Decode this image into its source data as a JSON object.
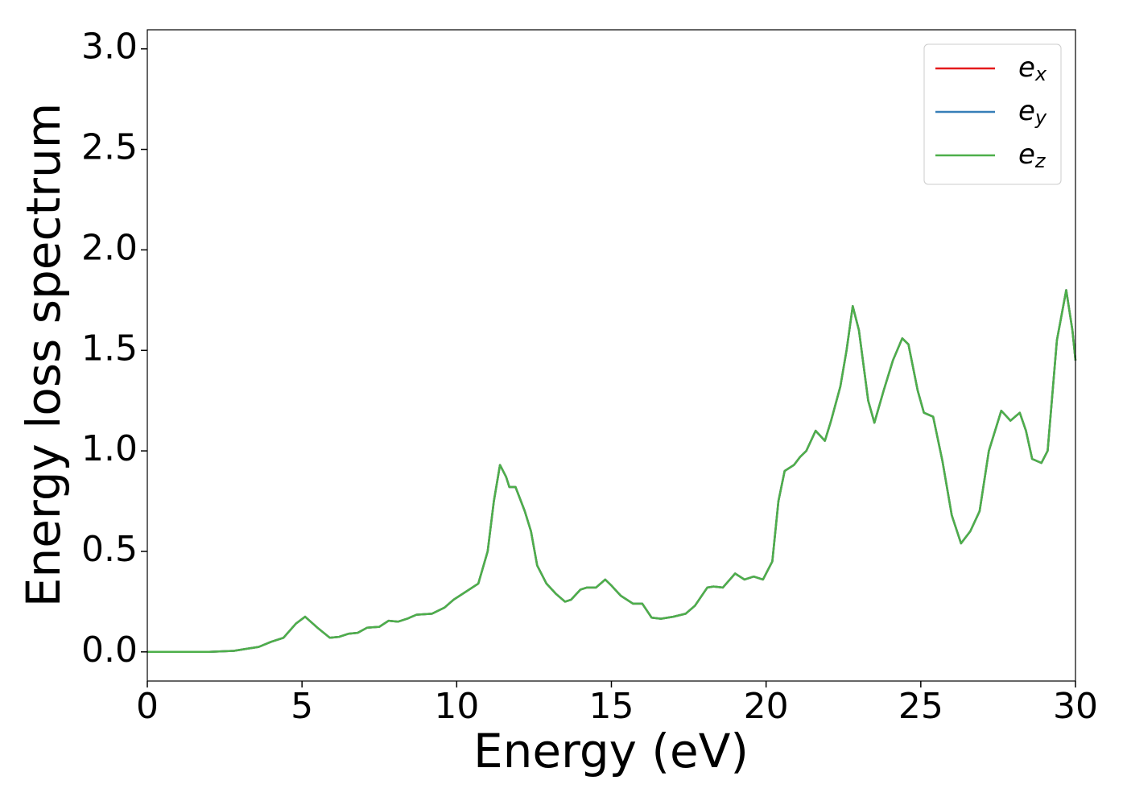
{
  "chart_data": {
    "type": "line",
    "xlabel": "Energy (eV)",
    "ylabel": "Energy loss spectrum",
    "x": [
      0,
      1,
      2,
      2.8,
      3.2,
      3.6,
      4,
      4.4,
      4.8,
      5.1,
      5.5,
      5.9,
      6.2,
      6.5,
      6.8,
      7.1,
      7.5,
      7.8,
      8.1,
      8.4,
      8.7,
      9.2,
      9.6,
      9.9,
      10.3,
      10.7,
      11.0,
      11.2,
      11.4,
      11.6,
      11.7,
      11.9,
      12.2,
      12.4,
      12.6,
      12.9,
      13.2,
      13.5,
      13.7,
      14.0,
      14.2,
      14.5,
      14.8,
      15.0,
      15.3,
      15.7,
      16.0,
      16.3,
      16.6,
      17.0,
      17.4,
      17.7,
      18.1,
      18.3,
      18.6,
      19.0,
      19.3,
      19.6,
      19.9,
      20.2,
      20.4,
      20.6,
      20.9,
      21.1,
      21.3,
      21.6,
      21.9,
      22.1,
      22.4,
      22.6,
      22.8,
      23.0,
      23.3,
      23.5,
      23.8,
      24.1,
      24.4,
      24.6,
      24.9,
      25.1,
      25.4,
      25.7,
      26.0,
      26.3,
      26.6,
      26.9,
      27.2,
      27.6,
      27.9,
      28.2,
      28.4,
      28.6,
      28.9,
      29.1,
      29.4,
      29.7,
      29.9,
      30.0
    ],
    "series": [
      {
        "name": "e_x",
        "color": "#e41a1c",
        "values": [
          0,
          0,
          0,
          0.005,
          0.015,
          0.025,
          0.05,
          0.07,
          0.14,
          0.175,
          0.12,
          0.07,
          0.075,
          0.09,
          0.095,
          0.12,
          0.125,
          0.155,
          0.15,
          0.165,
          0.185,
          0.19,
          0.22,
          0.26,
          0.3,
          0.34,
          0.5,
          0.75,
          0.93,
          0.87,
          0.82,
          0.82,
          0.7,
          0.6,
          0.43,
          0.34,
          0.29,
          0.25,
          0.26,
          0.31,
          0.32,
          0.32,
          0.36,
          0.33,
          0.28,
          0.24,
          0.24,
          0.17,
          0.165,
          0.175,
          0.19,
          0.23,
          0.32,
          0.325,
          0.32,
          0.39,
          0.36,
          0.375,
          0.36,
          0.45,
          0.75,
          0.9,
          0.93,
          0.97,
          1.0,
          1.1,
          1.05,
          1.15,
          1.32,
          1.5,
          1.72,
          1.6,
          1.25,
          1.14,
          1.3,
          1.45,
          1.56,
          1.53,
          1.3,
          1.19,
          1.17,
          0.95,
          0.68,
          0.54,
          0.6,
          0.7,
          1.0,
          1.2,
          1.15,
          1.19,
          1.1,
          0.96,
          0.94,
          1.0,
          1.55,
          1.8,
          1.6,
          1.45
        ]
      },
      {
        "name": "e_y",
        "color": "#377eb8",
        "values": [
          0,
          0,
          0,
          0.005,
          0.015,
          0.025,
          0.05,
          0.07,
          0.14,
          0.175,
          0.12,
          0.07,
          0.075,
          0.09,
          0.095,
          0.12,
          0.125,
          0.155,
          0.15,
          0.165,
          0.185,
          0.19,
          0.22,
          0.26,
          0.3,
          0.34,
          0.5,
          0.75,
          0.93,
          0.87,
          0.82,
          0.82,
          0.7,
          0.6,
          0.43,
          0.34,
          0.29,
          0.25,
          0.26,
          0.31,
          0.32,
          0.32,
          0.36,
          0.33,
          0.28,
          0.24,
          0.24,
          0.17,
          0.165,
          0.175,
          0.19,
          0.23,
          0.32,
          0.325,
          0.32,
          0.39,
          0.36,
          0.375,
          0.36,
          0.45,
          0.75,
          0.9,
          0.93,
          0.97,
          1.0,
          1.1,
          1.05,
          1.15,
          1.32,
          1.5,
          1.72,
          1.6,
          1.25,
          1.14,
          1.3,
          1.45,
          1.56,
          1.53,
          1.3,
          1.19,
          1.17,
          0.95,
          0.68,
          0.54,
          0.6,
          0.7,
          1.0,
          1.2,
          1.15,
          1.19,
          1.1,
          0.96,
          0.94,
          1.0,
          1.55,
          1.8,
          1.6,
          1.45
        ]
      },
      {
        "name": "e_z",
        "color": "#4daf4a",
        "values": [
          0,
          0,
          0,
          0.005,
          0.015,
          0.025,
          0.05,
          0.07,
          0.14,
          0.175,
          0.12,
          0.07,
          0.075,
          0.09,
          0.095,
          0.12,
          0.125,
          0.155,
          0.15,
          0.165,
          0.185,
          0.19,
          0.22,
          0.26,
          0.3,
          0.34,
          0.5,
          0.75,
          0.93,
          0.87,
          0.82,
          0.82,
          0.7,
          0.6,
          0.43,
          0.34,
          0.29,
          0.25,
          0.26,
          0.31,
          0.32,
          0.32,
          0.36,
          0.33,
          0.28,
          0.24,
          0.24,
          0.17,
          0.165,
          0.175,
          0.19,
          0.23,
          0.32,
          0.325,
          0.32,
          0.39,
          0.36,
          0.375,
          0.36,
          0.45,
          0.75,
          0.9,
          0.93,
          0.97,
          1.0,
          1.1,
          1.05,
          1.15,
          1.32,
          1.5,
          1.72,
          1.6,
          1.25,
          1.14,
          1.3,
          1.45,
          1.56,
          1.53,
          1.3,
          1.19,
          1.17,
          0.95,
          0.68,
          0.54,
          0.6,
          0.7,
          1.0,
          1.2,
          1.15,
          1.19,
          1.1,
          0.96,
          0.94,
          1.0,
          1.55,
          1.8,
          1.6,
          1.45
        ]
      }
    ],
    "xlim": [
      0,
      30
    ],
    "xticks": [
      0,
      5,
      10,
      15,
      20,
      25,
      30
    ],
    "ylim": [
      -0.145,
      3.095
    ],
    "yticks": [
      {
        "value": 0,
        "label": "0.0"
      },
      0.5,
      {
        "value": 1,
        "label": "1.0"
      },
      1.5,
      {
        "value": 2,
        "label": "2.0"
      },
      2.5,
      {
        "value": 3,
        "label": "3.0"
      }
    ],
    "grid": false,
    "legend": "upper right"
  }
}
